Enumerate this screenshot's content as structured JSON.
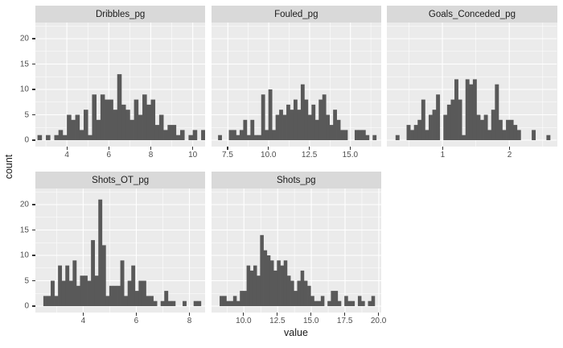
{
  "figure": {
    "background": "#FFFFFF"
  },
  "chart_data": {
    "type": "bar",
    "subtype": "faceted-histograms",
    "title": "",
    "xlabel": "value",
    "ylabel": "count",
    "legend": "none",
    "grid": "on",
    "y_ticks": [
      0,
      5,
      10,
      15,
      20
    ],
    "y_minor": [
      2.5,
      7.5,
      12.5,
      17.5,
      22.5
    ],
    "y_max": 23.2,
    "colors": {
      "bar": "#595959",
      "panel_bg": "#EBEBEB",
      "strip_bg": "#D9D9D9",
      "grid_major": "#FFFFFF",
      "grid_minor": "#FFFFFF",
      "tick_label": "#4D4D4D",
      "strip_text": "#1A1A1A",
      "axis_label": "#1A1A1A",
      "tick_mark": "#333333"
    },
    "facets": [
      {
        "title": "Dribbles_pg",
        "row": 0,
        "col": 0,
        "xmin": 2.5,
        "xmax": 10.6,
        "x_ticks": [
          {
            "v": 4,
            "label": "4"
          },
          {
            "v": 6,
            "label": "6"
          },
          {
            "v": 8,
            "label": "8"
          },
          {
            "v": 10,
            "label": "10"
          }
        ],
        "x_minor": [
          3,
          5,
          7,
          9
        ],
        "bin_start": 2.6,
        "bin_width": 0.2,
        "counts": [
          1,
          0,
          1,
          0,
          1,
          2,
          1,
          5,
          4,
          5,
          2,
          6,
          1,
          9,
          4,
          9,
          8,
          8,
          6,
          13,
          7,
          6,
          4,
          8,
          5,
          9,
          7,
          8,
          3,
          5,
          2,
          3,
          3,
          1,
          2,
          0,
          1,
          2,
          0,
          2
        ]
      },
      {
        "title": "Fouled_pg",
        "row": 0,
        "col": 1,
        "xmin": 6.5,
        "xmax": 16.9,
        "x_ticks": [
          {
            "v": 7.5,
            "label": "7.5"
          },
          {
            "v": 10,
            "label": "10.0"
          },
          {
            "v": 12.5,
            "label": "12.5"
          },
          {
            "v": 15,
            "label": "15.0"
          }
        ],
        "x_minor": [
          8.75,
          11.25,
          13.75,
          16.25
        ],
        "bin_start": 6.9,
        "bin_width": 0.22,
        "counts": [
          1,
          0,
          0,
          2,
          2,
          1,
          2,
          4,
          1,
          4,
          1,
          1,
          9,
          2,
          10,
          2,
          5,
          6,
          5,
          7,
          6,
          8,
          6,
          11,
          8,
          5,
          7,
          4,
          8,
          9,
          5,
          3,
          6,
          4,
          2,
          2,
          0,
          0,
          2,
          2,
          2,
          1,
          0,
          1
        ]
      },
      {
        "title": "Goals_Conceded_pg",
        "row": 0,
        "col": 2,
        "xmin": 0.17,
        "xmax": 2.71,
        "x_ticks": [
          {
            "v": 1,
            "label": "1"
          },
          {
            "v": 2,
            "label": "2"
          }
        ],
        "x_minor": [
          0.5,
          1.5,
          2.5
        ],
        "bin_start": 0.3,
        "bin_width": 0.055,
        "counts": [
          1,
          0,
          0,
          3,
          2,
          3,
          4,
          8,
          2,
          5,
          6,
          9,
          0,
          5,
          7,
          8,
          12,
          8,
          1,
          12,
          11,
          12,
          5,
          4,
          5,
          2,
          6,
          11,
          4,
          2,
          4,
          4,
          3,
          2,
          0,
          0,
          0,
          2,
          0,
          0,
          0,
          1
        ]
      },
      {
        "title": "Shots_OT_pg",
        "row": 1,
        "col": 0,
        "xmin": 2.2,
        "xmax": 8.6,
        "x_ticks": [
          {
            "v": 4,
            "label": "4"
          },
          {
            "v": 6,
            "label": "6"
          },
          {
            "v": 8,
            "label": "8"
          }
        ],
        "x_minor": [
          3,
          5,
          7
        ],
        "bin_start": 2.5,
        "bin_width": 0.138,
        "counts": [
          2,
          2,
          5,
          2,
          8,
          5,
          8,
          5,
          9,
          4,
          6,
          6,
          5,
          13,
          6,
          21,
          12,
          2,
          4,
          4,
          4,
          9,
          2,
          5,
          8,
          3,
          5,
          5,
          2,
          2,
          1,
          0,
          1,
          3,
          1,
          1,
          0,
          0,
          1,
          0,
          0,
          1,
          1
        ]
      },
      {
        "title": "Shots_pg",
        "row": 1,
        "col": 1,
        "xmin": 7.6,
        "xmax": 20.2,
        "x_ticks": [
          {
            "v": 10,
            "label": "10.0"
          },
          {
            "v": 12.5,
            "label": "12.5"
          },
          {
            "v": 15,
            "label": "15.0"
          },
          {
            "v": 17.5,
            "label": "17.5"
          },
          {
            "v": 20,
            "label": "20.0"
          }
        ],
        "x_minor": [
          8.75,
          11.25,
          13.75,
          16.25,
          18.75
        ],
        "bin_start": 8.2,
        "bin_width": 0.25,
        "counts": [
          2,
          2,
          1,
          1,
          2,
          1,
          3,
          3,
          8,
          7,
          8,
          6,
          14,
          11,
          10,
          9,
          7,
          9,
          8,
          9,
          6,
          5,
          3,
          5,
          7,
          5,
          4,
          2,
          1,
          1,
          2,
          0,
          1,
          3,
          3,
          1,
          0,
          2,
          1,
          1,
          0,
          2,
          1,
          0,
          1,
          2
        ]
      }
    ]
  }
}
